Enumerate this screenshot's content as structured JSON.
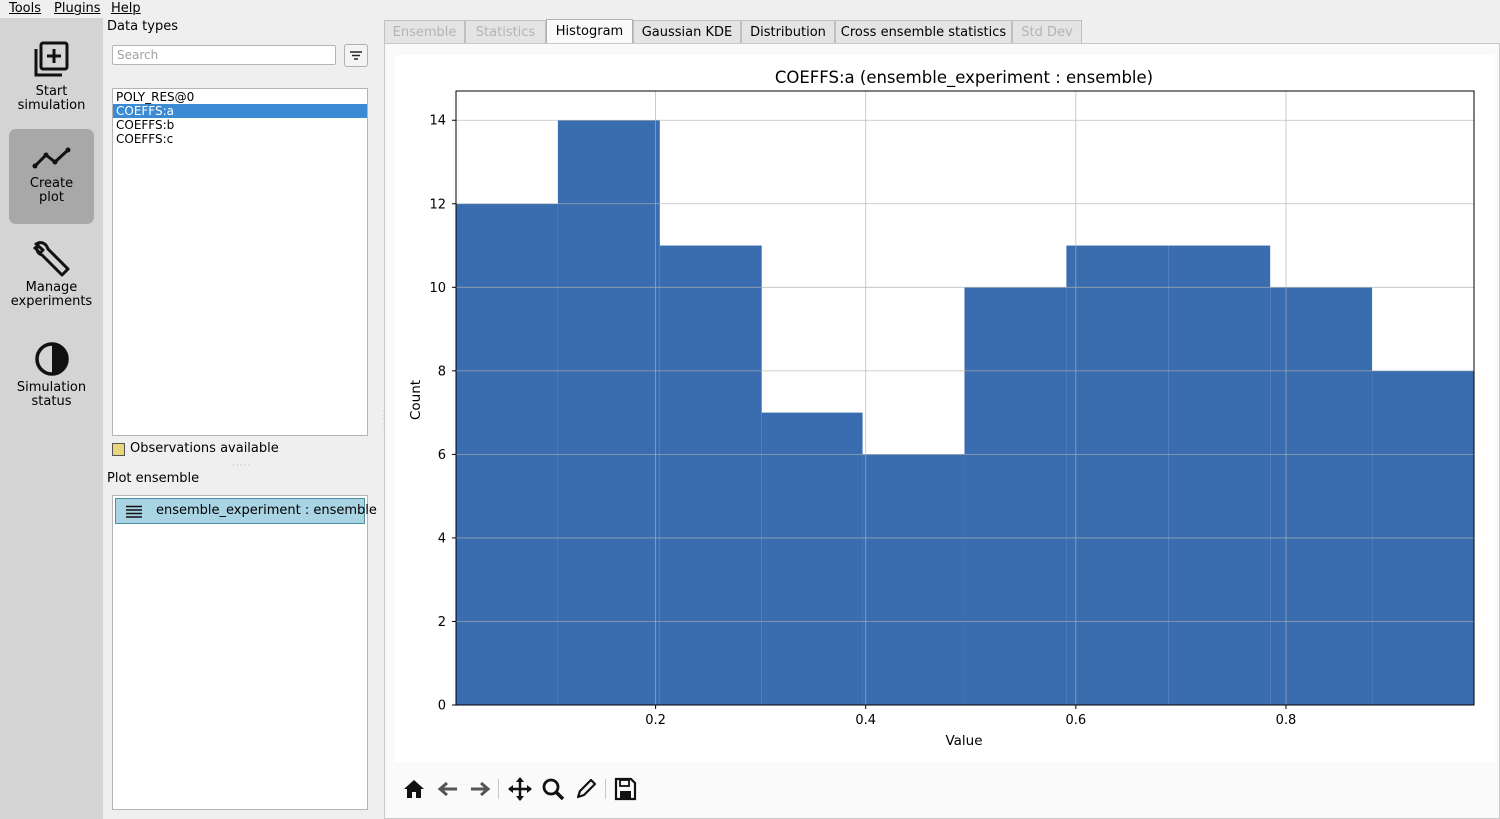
{
  "menu": [
    "Tools",
    "Plugins",
    "Help"
  ],
  "sidebar": {
    "items": [
      {
        "label": "Start\nsimulation",
        "icon": "add-box-icon"
      },
      {
        "label": "Create\nplot",
        "icon": "line-chart-icon",
        "active": true
      },
      {
        "label": "Manage\nexperiments",
        "icon": "wrench-icon"
      },
      {
        "label": "Simulation\nstatus",
        "icon": "half-circle-icon"
      }
    ]
  },
  "data_types": {
    "title": "Data types",
    "search_placeholder": "Search",
    "items": [
      "POLY_RES@0",
      "COEFFS:a",
      "COEFFS:b",
      "COEFFS:c"
    ],
    "selected": "COEFFS:a"
  },
  "observations_label": "Observations available",
  "plot_ensemble": {
    "title": "Plot ensemble",
    "items": [
      "ensemble_experiment : ensemble"
    ]
  },
  "tabs": [
    {
      "label": "Ensemble",
      "state": "disabled"
    },
    {
      "label": "Statistics",
      "state": "disabled"
    },
    {
      "label": "Histogram",
      "state": "active"
    },
    {
      "label": "Gaussian KDE",
      "state": "normal"
    },
    {
      "label": "Distribution",
      "state": "normal"
    },
    {
      "label": "Cross ensemble statistics",
      "state": "normal"
    },
    {
      "label": "Std Dev",
      "state": "disabled"
    }
  ],
  "chart_data": {
    "type": "bar",
    "title": "COEFFS:a (ensemble_experiment : ensemble)",
    "xlabel": "Value",
    "ylabel": "Count",
    "bin_edges": [
      0.01,
      0.107,
      0.204,
      0.301,
      0.397,
      0.494,
      0.591,
      0.688,
      0.785,
      0.882,
      0.979
    ],
    "values": [
      12,
      14,
      11,
      7,
      6,
      10,
      11,
      11,
      10,
      8
    ],
    "xlim": [
      0.01,
      0.979
    ],
    "ylim": [
      0,
      14.7
    ],
    "xticks": [
      0.2,
      0.4,
      0.6,
      0.8
    ],
    "xtick_labels": [
      "0.2",
      "0.4",
      "0.6",
      "0.8"
    ],
    "yticks": [
      0,
      2,
      4,
      6,
      8,
      10,
      12,
      14
    ],
    "ytick_labels": [
      "0",
      "2",
      "4",
      "6",
      "8",
      "10",
      "12",
      "14"
    ],
    "grid": true,
    "color": "#3a6db0"
  },
  "toolbar": [
    "home-icon",
    "back-arrow-icon",
    "forward-arrow-icon",
    "pan-icon",
    "zoom-icon",
    "edit-icon",
    "save-icon"
  ]
}
